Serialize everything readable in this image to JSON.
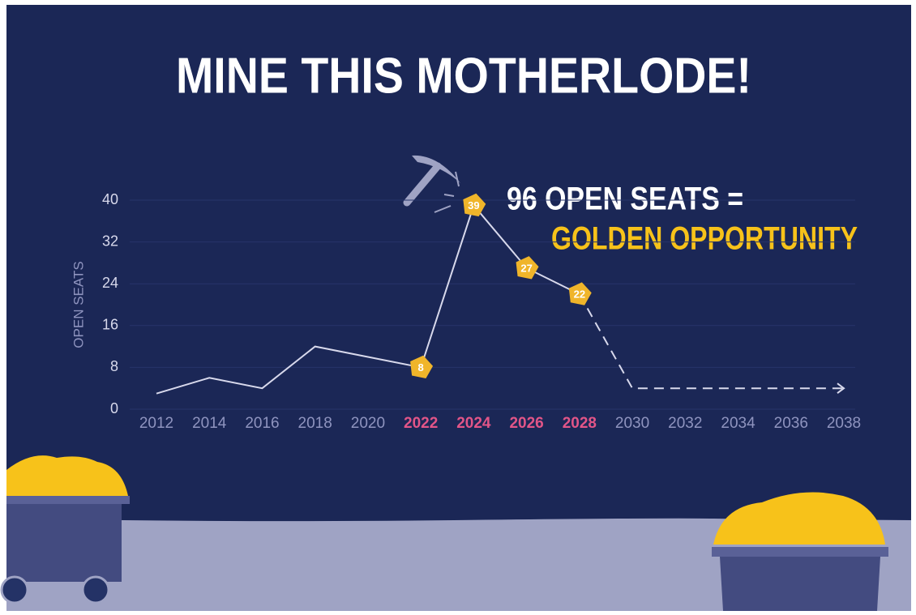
{
  "chart_data": {
    "type": "line",
    "title": "MINE THIS MOTHERLODE!",
    "annotations": [
      "96 OPEN SEATS =",
      "GOLDEN OPPORTUNITY"
    ],
    "ylabel": "OPEN SEATS",
    "x": [
      2012,
      2014,
      2016,
      2018,
      2020,
      2022,
      2024,
      2026,
      2028,
      2030,
      2032,
      2034,
      2036,
      2038
    ],
    "values": [
      3,
      6,
      4,
      12,
      10,
      8,
      39,
      27,
      22,
      null,
      null,
      null,
      null,
      null
    ],
    "projection": [
      null,
      null,
      null,
      null,
      null,
      null,
      null,
      null,
      22,
      4,
      4,
      4,
      4,
      4
    ],
    "labeled": [
      false,
      false,
      false,
      false,
      false,
      true,
      true,
      true,
      true,
      false,
      false,
      false,
      false,
      false
    ],
    "highlight_x": [
      2022,
      2024,
      2026,
      2028
    ],
    "xlim": [
      2012,
      2038
    ],
    "xticks": [
      2012,
      2014,
      2016,
      2018,
      2020,
      2022,
      2024,
      2026,
      2028,
      2030,
      2032,
      2034,
      2036,
      2038
    ],
    "ylim": [
      0,
      40
    ],
    "yticks": [
      0,
      8,
      16,
      24,
      32,
      40
    ],
    "grid": true,
    "color": "#d8d9ec",
    "label_color": "#f0b52a",
    "highlight_color": "#e25588"
  }
}
